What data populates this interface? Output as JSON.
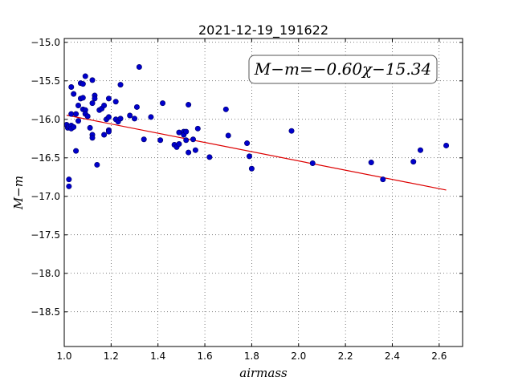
{
  "chart_data": {
    "type": "scatter",
    "title": "2021-12-19_191622",
    "xlabel": "airmass",
    "ylabel": "M−m",
    "xlim": [
      1.0,
      2.7
    ],
    "ylim": [
      -18.95,
      -14.95
    ],
    "y_inverted": true,
    "xticks": [
      1.0,
      1.2,
      1.4,
      1.6,
      1.8,
      2.0,
      2.2,
      2.4,
      2.6
    ],
    "xtick_labels": [
      "1.0",
      "1.2",
      "1.4",
      "1.6",
      "1.8",
      "2.0",
      "2.2",
      "2.4",
      "2.6"
    ],
    "yticks": [
      -15.0,
      -15.5,
      -16.0,
      -16.5,
      -17.0,
      -17.5,
      -18.0,
      -18.5
    ],
    "ytick_labels": [
      "−15.0",
      "−15.5",
      "−16.0",
      "−16.5",
      "−17.0",
      "−17.5",
      "−18.0",
      "−18.5"
    ],
    "grid": true,
    "annotation": "M−m=−0.60χ−15.34",
    "colors": {
      "points": "#0000cc",
      "fit": "#dd0000"
    },
    "points": [
      [
        1.01,
        -16.07
      ],
      [
        1.015,
        -16.11
      ],
      [
        1.02,
        -16.09
      ],
      [
        1.03,
        -16.08
      ],
      [
        1.03,
        -16.12
      ],
      [
        1.04,
        -16.1
      ],
      [
        1.02,
        -16.78
      ],
      [
        1.02,
        -16.87
      ],
      [
        1.03,
        -15.93
      ],
      [
        1.03,
        -15.58
      ],
      [
        1.04,
        -15.67
      ],
      [
        1.05,
        -15.93
      ],
      [
        1.05,
        -16.41
      ],
      [
        1.06,
        -16.02
      ],
      [
        1.06,
        -15.82
      ],
      [
        1.07,
        -15.73
      ],
      [
        1.07,
        -15.53
      ],
      [
        1.08,
        -15.72
      ],
      [
        1.08,
        -15.54
      ],
      [
        1.08,
        -15.87
      ],
      [
        1.09,
        -15.88
      ],
      [
        1.09,
        -15.44
      ],
      [
        1.09,
        -15.93
      ],
      [
        1.1,
        -15.96
      ],
      [
        1.11,
        -16.11
      ],
      [
        1.12,
        -15.49
      ],
      [
        1.12,
        -15.79
      ],
      [
        1.12,
        -16.2
      ],
      [
        1.12,
        -16.24
      ],
      [
        1.13,
        -15.69
      ],
      [
        1.13,
        -15.73
      ],
      [
        1.14,
        -16.59
      ],
      [
        1.15,
        -15.88
      ],
      [
        1.16,
        -15.86
      ],
      [
        1.17,
        -15.82
      ],
      [
        1.17,
        -16.2
      ],
      [
        1.18,
        -16.0
      ],
      [
        1.19,
        -15.73
      ],
      [
        1.19,
        -16.14
      ],
      [
        1.19,
        -16.16
      ],
      [
        1.19,
        -15.97
      ],
      [
        1.22,
        -16.0
      ],
      [
        1.22,
        -15.77
      ],
      [
        1.23,
        -16.03
      ],
      [
        1.24,
        -15.99
      ],
      [
        1.24,
        -15.55
      ],
      [
        1.28,
        -15.95
      ],
      [
        1.3,
        -15.99
      ],
      [
        1.31,
        -15.84
      ],
      [
        1.32,
        -15.32
      ],
      [
        1.34,
        -16.26
      ],
      [
        1.37,
        -15.97
      ],
      [
        1.41,
        -16.27
      ],
      [
        1.42,
        -15.79
      ],
      [
        1.47,
        -16.33
      ],
      [
        1.48,
        -16.36
      ],
      [
        1.49,
        -16.17
      ],
      [
        1.49,
        -16.32
      ],
      [
        1.51,
        -16.16
      ],
      [
        1.51,
        -16.2
      ],
      [
        1.52,
        -16.27
      ],
      [
        1.52,
        -16.16
      ],
      [
        1.53,
        -15.81
      ],
      [
        1.53,
        -16.43
      ],
      [
        1.55,
        -16.26
      ],
      [
        1.56,
        -16.4
      ],
      [
        1.57,
        -16.12
      ],
      [
        1.62,
        -16.49
      ],
      [
        1.69,
        -15.87
      ],
      [
        1.7,
        -16.21
      ],
      [
        1.78,
        -16.31
      ],
      [
        1.79,
        -16.48
      ],
      [
        1.8,
        -16.64
      ],
      [
        1.97,
        -16.15
      ],
      [
        2.06,
        -16.57
      ],
      [
        2.31,
        -16.56
      ],
      [
        2.36,
        -16.78
      ],
      [
        2.49,
        -16.55
      ],
      [
        2.52,
        -16.4
      ],
      [
        2.63,
        -16.34
      ]
    ],
    "fit": {
      "slope": -0.6,
      "intercept": -15.34,
      "x_range": [
        1.01,
        2.63
      ]
    }
  }
}
